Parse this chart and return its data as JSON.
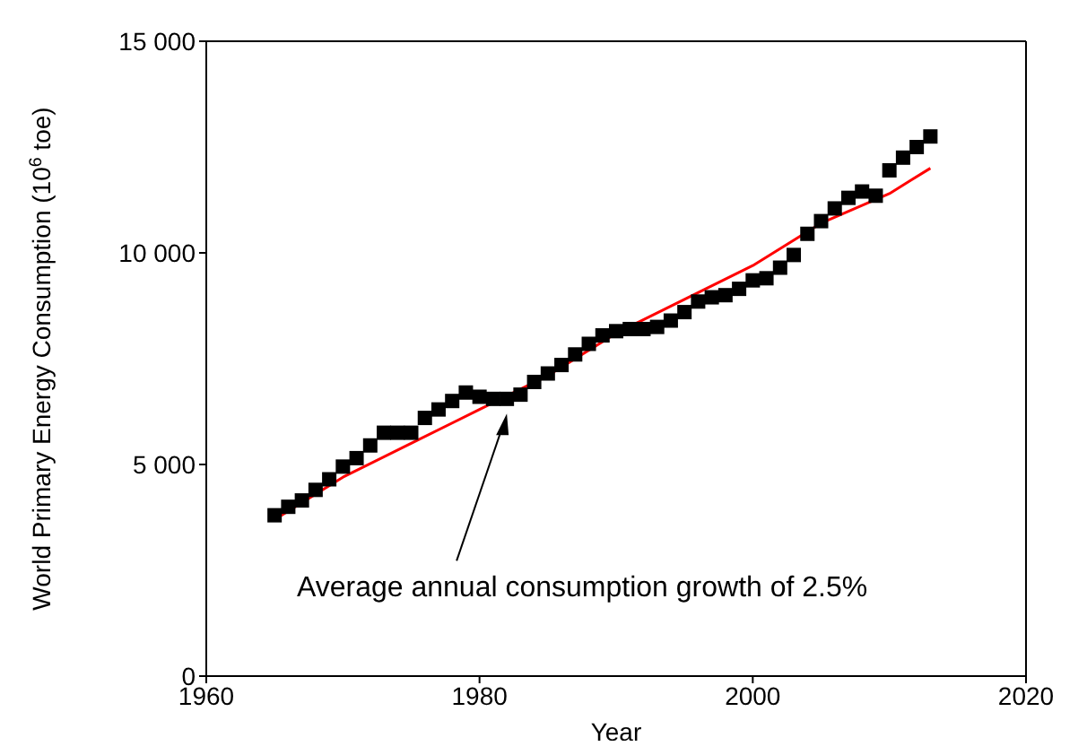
{
  "chart_data": {
    "type": "scatter",
    "xlabel": "Year",
    "ylabel": "World Primary Energy Consumption (10$^{6}$ toe)",
    "xlim": [
      1960,
      2020
    ],
    "xticks": [
      1960,
      1980,
      2000,
      2020
    ],
    "ylim": [
      0,
      15000
    ],
    "yticks": [
      0,
      {
        "value": 5000,
        "label": "5 000"
      },
      {
        "value": 10000,
        "label": "10 000"
      },
      {
        "value": 15000,
        "label": "15 000"
      }
    ],
    "grid": false,
    "legend": false,
    "marker": "square",
    "series": [
      {
        "color": "#000000",
        "x": [
          1965,
          1966,
          1967,
          1968,
          1969,
          1970,
          1971,
          1972,
          1973,
          1974,
          1975,
          1976,
          1977,
          1978,
          1979,
          1980,
          1981,
          1982,
          1983,
          1984,
          1985,
          1986,
          1987,
          1988,
          1989,
          1990,
          1991,
          1992,
          1993,
          1994,
          1995,
          1996,
          1997,
          1998,
          1999,
          2000,
          2001,
          2002,
          2003,
          2004,
          2005,
          2006,
          2007,
          2008,
          2009,
          2010,
          2011,
          2012,
          2013
        ],
        "values": [
          3800,
          4000,
          4150,
          4400,
          4650,
          4950,
          5150,
          5450,
          5750,
          5750,
          5750,
          6100,
          6300,
          6500,
          6700,
          6600,
          6550,
          6550,
          6650,
          6950,
          7150,
          7350,
          7600,
          7850,
          8050,
          8150,
          8200,
          8200,
          8250,
          8400,
          8600,
          8850,
          8950,
          9000,
          9150,
          9350,
          9400,
          9650,
          9950,
          10450,
          10750,
          11050,
          11300,
          11450,
          11350,
          11950,
          12250,
          12500,
          12750
        ]
      },
      {
        "type": "line",
        "color": "#ff0000",
        "marker": "none",
        "line_style": "solid",
        "x": [
          1965,
          1970,
          1975,
          1980,
          1985,
          1990,
          1995,
          2000,
          2005,
          2010,
          2013
        ],
        "values": [
          3700,
          4700,
          5500,
          6300,
          7100,
          8100,
          8900,
          9700,
          10700,
          11400,
          12000
        ]
      }
    ],
    "annotations": [
      {
        "text": "Average annual consumption growth of 2.5%",
        "x": 1982,
        "y": 6200
      }
    ]
  }
}
